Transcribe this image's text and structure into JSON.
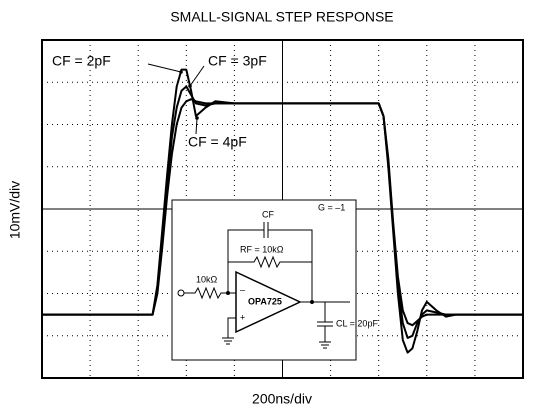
{
  "chart_data": {
    "type": "line",
    "title": "SMALL-SIGNAL STEP RESPONSE",
    "xlabel": "200ns/div",
    "ylabel": "10mV/div",
    "x": [
      0,
      460,
      480,
      500,
      520,
      540,
      560,
      580,
      600,
      620,
      640,
      680,
      720,
      800,
      900,
      1000,
      1200,
      1400,
      1420,
      1440,
      1460,
      1480,
      1500,
      1520,
      1540,
      1560,
      1580,
      1600,
      1640,
      1680,
      1720,
      1800,
      2000
    ],
    "series": [
      {
        "name": "CF = 2pF",
        "color": "#000000",
        "values": [
          -25,
          -25,
          -18,
          -5,
          8,
          20,
          29,
          33,
          33,
          28,
          22,
          24,
          25.5,
          25,
          25,
          25,
          25,
          25,
          22,
          10,
          -5,
          -20,
          -31,
          -34,
          -33,
          -29,
          -24,
          -22,
          -24,
          -25.5,
          -25,
          -25,
          -25
        ]
      },
      {
        "name": "CF = 3pF",
        "color": "#000000",
        "values": [
          -25,
          -25,
          -19,
          -7,
          6,
          17,
          24,
          28,
          29,
          27,
          25,
          24.5,
          25,
          25,
          25,
          25,
          25,
          25,
          22,
          11,
          -4,
          -18,
          -27,
          -30.5,
          -30,
          -27,
          -25,
          -24,
          -24.5,
          -25,
          -25,
          -25,
          -25
        ]
      },
      {
        "name": "CF = 4pF",
        "color": "#000000",
        "values": [
          -25,
          -25,
          -20,
          -9,
          3,
          13,
          20,
          24,
          25.5,
          26,
          25.5,
          25,
          25,
          25,
          25,
          25,
          25,
          25,
          22,
          12,
          -3,
          -16,
          -24,
          -27,
          -27.5,
          -26.5,
          -25.5,
          -25,
          -25,
          -25,
          -25,
          -25,
          -25
        ]
      }
    ],
    "xlim": [
      0,
      2000
    ],
    "ylim": [
      -40,
      40
    ],
    "xticks": [
      0,
      200,
      400,
      600,
      800,
      1000,
      1200,
      1400,
      1600,
      1800,
      2000
    ],
    "yticks": [
      -40,
      -30,
      -20,
      -10,
      0,
      10,
      20,
      30,
      40
    ],
    "grid": true,
    "inset_labels": {
      "cf": "CF",
      "rf": "RF = 10kΩ",
      "gain": "G = –1",
      "rin": "10kΩ",
      "amp": "OPA725",
      "cl": "CL = 20pF",
      "minus": "–",
      "plus": "+"
    }
  }
}
